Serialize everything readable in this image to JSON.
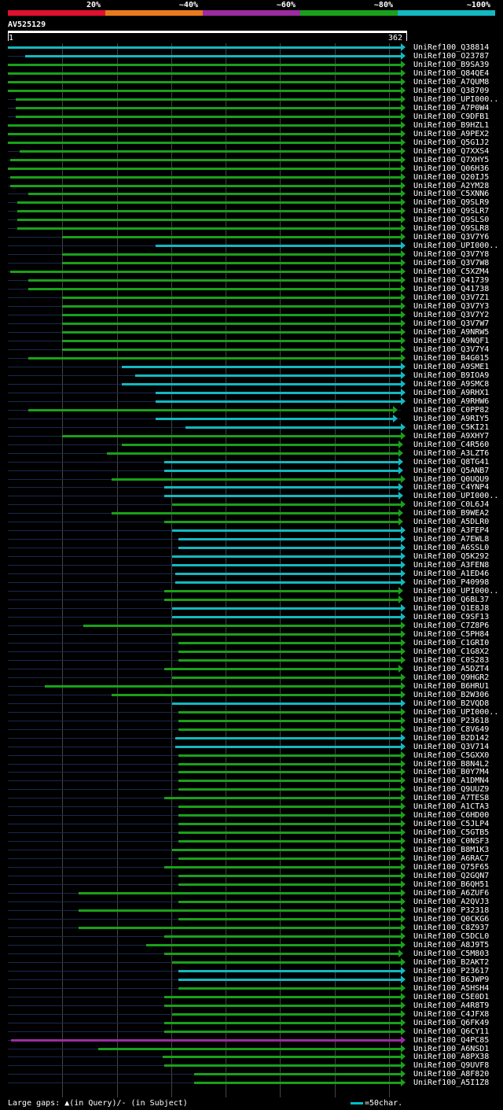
{
  "legend": {
    "colors": [
      "#e0102f",
      "#e87a1e",
      "#9a2ca0",
      "#1aa01a",
      "#14b8c0"
    ],
    "labels": [
      "20%",
      "~40%",
      "~60%",
      "~80%",
      "~100%"
    ]
  },
  "query": {
    "id": "AV525129",
    "start": "1",
    "end": "362"
  },
  "footer": {
    "gaps_text": "Large gaps: ▲(in Query)/- (in Subject)",
    "scale_text": "=50char."
  },
  "hits": [
    {
      "label": "UniRef100_Q38814",
      "from": 1,
      "to": 362,
      "color": "#14b8c0"
    },
    {
      "label": "UniRef100_O23787",
      "from": 17,
      "to": 362,
      "color": "#14b8c0"
    },
    {
      "label": "UniRef100_B9SA39",
      "from": 1,
      "to": 362,
      "color": "#1aa01a"
    },
    {
      "label": "UniRef100_Q84QE4",
      "from": 1,
      "to": 362,
      "color": "#1aa01a"
    },
    {
      "label": "UniRef100_A7QUM8",
      "from": 1,
      "to": 362,
      "color": "#1aa01a"
    },
    {
      "label": "UniRef100_Q38709",
      "from": 1,
      "to": 362,
      "color": "#1aa01a"
    },
    {
      "label": "UniRef100_UPI000..",
      "from": 8,
      "to": 362,
      "color": "#1aa01a"
    },
    {
      "label": "UniRef100_A7P0W4",
      "from": 8,
      "to": 362,
      "color": "#1aa01a"
    },
    {
      "label": "UniRef100_C9DFB1",
      "from": 8,
      "to": 362,
      "color": "#1aa01a"
    },
    {
      "label": "UniRef100_B9HZL1",
      "from": 1,
      "to": 362,
      "color": "#1aa01a"
    },
    {
      "label": "UniRef100_A9PEX2",
      "from": 1,
      "to": 362,
      "color": "#1aa01a"
    },
    {
      "label": "UniRef100_Q5G1J2",
      "from": 1,
      "to": 362,
      "color": "#1aa01a"
    },
    {
      "label": "UniRef100_Q7XXS4",
      "from": 12,
      "to": 362,
      "color": "#1aa01a"
    },
    {
      "label": "UniRef100_Q7XHY5",
      "from": 3,
      "to": 362,
      "color": "#1aa01a"
    },
    {
      "label": "UniRef100_Q06H36",
      "from": 1,
      "to": 362,
      "color": "#1aa01a"
    },
    {
      "label": "UniRef100_Q20IJ5",
      "from": 3,
      "to": 362,
      "color": "#1aa01a"
    },
    {
      "label": "UniRef100_A2YM28",
      "from": 3,
      "to": 362,
      "color": "#1aa01a"
    },
    {
      "label": "UniRef100_C5XNN6",
      "from": 20,
      "to": 362,
      "color": "#1aa01a"
    },
    {
      "label": "UniRef100_Q9SLR9",
      "from": 10,
      "to": 362,
      "color": "#1aa01a"
    },
    {
      "label": "UniRef100_Q9SLR7",
      "from": 10,
      "to": 362,
      "color": "#1aa01a"
    },
    {
      "label": "UniRef100_Q9SLS0",
      "from": 10,
      "to": 362,
      "color": "#1aa01a"
    },
    {
      "label": "UniRef100_Q9SLR8",
      "from": 10,
      "to": 362,
      "color": "#1aa01a"
    },
    {
      "label": "UniRef100_Q3V7Y6",
      "from": 51,
      "to": 362,
      "color": "#1aa01a"
    },
    {
      "label": "UniRef100_UPI000..",
      "from": 137,
      "to": 362,
      "color": "#14b8c0"
    },
    {
      "label": "UniRef100_Q3V7Y8",
      "from": 51,
      "to": 362,
      "color": "#1aa01a"
    },
    {
      "label": "UniRef100_Q3V7W8",
      "from": 51,
      "to": 362,
      "color": "#1aa01a"
    },
    {
      "label": "UniRef100_C5XZM4",
      "from": 3,
      "to": 362,
      "color": "#1aa01a"
    },
    {
      "label": "UniRef100_Q41739",
      "from": 20,
      "to": 362,
      "color": "#1aa01a"
    },
    {
      "label": "UniRef100_Q41738",
      "from": 20,
      "to": 362,
      "color": "#1aa01a"
    },
    {
      "label": "UniRef100_Q3V7Z1",
      "from": 51,
      "to": 362,
      "color": "#1aa01a"
    },
    {
      "label": "UniRef100_Q3V7Y3",
      "from": 51,
      "to": 362,
      "color": "#1aa01a"
    },
    {
      "label": "UniRef100_Q3V7Y2",
      "from": 51,
      "to": 362,
      "color": "#1aa01a"
    },
    {
      "label": "UniRef100_Q3V7W7",
      "from": 51,
      "to": 362,
      "color": "#1aa01a"
    },
    {
      "label": "UniRef100_A9NRW5",
      "from": 51,
      "to": 362,
      "color": "#1aa01a"
    },
    {
      "label": "UniRef100_A9NQF1",
      "from": 51,
      "to": 362,
      "color": "#1aa01a"
    },
    {
      "label": "UniRef100_Q3V7Y4",
      "from": 51,
      "to": 362,
      "color": "#1aa01a"
    },
    {
      "label": "UniRef100_B4G015",
      "from": 20,
      "to": 362,
      "color": "#1aa01a"
    },
    {
      "label": "UniRef100_A9SME1",
      "from": 106,
      "to": 362,
      "color": "#14b8c0"
    },
    {
      "label": "UniRef100_B9IOA9",
      "from": 118,
      "to": 362,
      "color": "#14b8c0"
    },
    {
      "label": "UniRef100_A9SMC8",
      "from": 106,
      "to": 362,
      "color": "#14b8c0"
    },
    {
      "label": "UniRef100_A9RHX1",
      "from": 137,
      "to": 362,
      "color": "#14b8c0"
    },
    {
      "label": "UniRef100_A9RHW6",
      "from": 137,
      "to": 362,
      "color": "#14b8c0"
    },
    {
      "label": "UniRef100_C0PP82",
      "from": 20,
      "to": 355,
      "color": "#1aa01a"
    },
    {
      "label": "UniRef100_A9RIY5",
      "from": 137,
      "to": 355,
      "color": "#14b8c0"
    },
    {
      "label": "UniRef100_C5KI21",
      "from": 164,
      "to": 362,
      "color": "#14b8c0"
    },
    {
      "label": "UniRef100_A9XHY7",
      "from": 51,
      "to": 362,
      "color": "#1aa01a"
    },
    {
      "label": "UniRef100_C4R560",
      "from": 106,
      "to": 360,
      "color": "#1aa01a"
    },
    {
      "label": "UniRef100_A3LZT6",
      "from": 92,
      "to": 360,
      "color": "#1aa01a"
    },
    {
      "label": "UniRef100_Q8TG41",
      "from": 145,
      "to": 360,
      "color": "#14b8c0"
    },
    {
      "label": "UniRef100_Q5ANB7",
      "from": 145,
      "to": 360,
      "color": "#14b8c0"
    },
    {
      "label": "UniRef100_Q0UQU9",
      "from": 96,
      "to": 362,
      "color": "#1aa01a"
    },
    {
      "label": "UniRef100_C4YNP4",
      "from": 145,
      "to": 360,
      "color": "#14b8c0"
    },
    {
      "label": "UniRef100_UPI000..",
      "from": 145,
      "to": 360,
      "color": "#14b8c0"
    },
    {
      "label": "UniRef100_C0L6J4",
      "from": 152,
      "to": 362,
      "color": "#1aa01a"
    },
    {
      "label": "UniRef100_B9WEA2",
      "from": 96,
      "to": 360,
      "color": "#1aa01a"
    },
    {
      "label": "UniRef100_A5DLR0",
      "from": 145,
      "to": 360,
      "color": "#1aa01a"
    },
    {
      "label": "UniRef100_A3FEP4",
      "from": 152,
      "to": 362,
      "color": "#14b8c0"
    },
    {
      "label": "UniRef100_A7EWL8",
      "from": 158,
      "to": 362,
      "color": "#14b8c0"
    },
    {
      "label": "UniRef100_A6SSL0",
      "from": 158,
      "to": 362,
      "color": "#14b8c0"
    },
    {
      "label": "UniRef100_Q5K292",
      "from": 152,
      "to": 362,
      "color": "#14b8c0"
    },
    {
      "label": "UniRef100_A3FEN8",
      "from": 152,
      "to": 362,
      "color": "#14b8c0"
    },
    {
      "label": "UniRef100_A1ED46",
      "from": 155,
      "to": 362,
      "color": "#14b8c0"
    },
    {
      "label": "UniRef100_P40998",
      "from": 155,
      "to": 362,
      "color": "#14b8c0"
    },
    {
      "label": "UniRef100_UPI000..",
      "from": 145,
      "to": 360,
      "color": "#1aa01a"
    },
    {
      "label": "UniRef100_Q6BL37",
      "from": 145,
      "to": 360,
      "color": "#1aa01a"
    },
    {
      "label": "UniRef100_Q1E8J8",
      "from": 152,
      "to": 362,
      "color": "#14b8c0"
    },
    {
      "label": "UniRef100_C9SF13",
      "from": 152,
      "to": 362,
      "color": "#14b8c0"
    },
    {
      "label": "UniRef100_C7Z8P6",
      "from": 70,
      "to": 362,
      "color": "#1aa01a"
    },
    {
      "label": "UniRef100_C5PH84",
      "from": 152,
      "to": 362,
      "color": "#1aa01a"
    },
    {
      "label": "UniRef100_C1GRI0",
      "from": 158,
      "to": 362,
      "color": "#1aa01a"
    },
    {
      "label": "UniRef100_C1G8X2",
      "from": 158,
      "to": 362,
      "color": "#1aa01a"
    },
    {
      "label": "UniRef100_C0S283",
      "from": 158,
      "to": 362,
      "color": "#1aa01a"
    },
    {
      "label": "UniRef100_A5DZT4",
      "from": 145,
      "to": 360,
      "color": "#1aa01a"
    },
    {
      "label": "UniRef100_Q9HGR2",
      "from": 152,
      "to": 362,
      "color": "#1aa01a"
    },
    {
      "label": "UniRef100_B6HRU1",
      "from": 35,
      "to": 362,
      "color": "#1aa01a"
    },
    {
      "label": "UniRef100_B2W306",
      "from": 96,
      "to": 362,
      "color": "#1aa01a"
    },
    {
      "label": "UniRef100_B2VQD8",
      "from": 152,
      "to": 362,
      "color": "#14b8c0"
    },
    {
      "label": "UniRef100_UPI000..",
      "from": 158,
      "to": 362,
      "color": "#1aa01a"
    },
    {
      "label": "UniRef100_P23618",
      "from": 158,
      "to": 362,
      "color": "#1aa01a"
    },
    {
      "label": "UniRef100_C8V649",
      "from": 158,
      "to": 362,
      "color": "#1aa01a"
    },
    {
      "label": "UniRef100_B2D142",
      "from": 155,
      "to": 362,
      "color": "#14b8c0"
    },
    {
      "label": "UniRef100_Q3V714",
      "from": 155,
      "to": 362,
      "color": "#14b8c0"
    },
    {
      "label": "UniRef100_C5GXX0",
      "from": 158,
      "to": 362,
      "color": "#1aa01a"
    },
    {
      "label": "UniRef100_B8N4L2",
      "from": 158,
      "to": 362,
      "color": "#1aa01a"
    },
    {
      "label": "UniRef100_B0Y7M4",
      "from": 158,
      "to": 362,
      "color": "#1aa01a"
    },
    {
      "label": "UniRef100_A1DMN4",
      "from": 158,
      "to": 362,
      "color": "#1aa01a"
    },
    {
      "label": "UniRef100_Q9UUZ9",
      "from": 158,
      "to": 362,
      "color": "#1aa01a"
    },
    {
      "label": "UniRef100_A7TES8",
      "from": 145,
      "to": 362,
      "color": "#1aa01a"
    },
    {
      "label": "UniRef100_A1CTA3",
      "from": 158,
      "to": 362,
      "color": "#1aa01a"
    },
    {
      "label": "UniRef100_C6HD00",
      "from": 158,
      "to": 362,
      "color": "#1aa01a"
    },
    {
      "label": "UniRef100_C5JLP4",
      "from": 158,
      "to": 362,
      "color": "#1aa01a"
    },
    {
      "label": "UniRef100_C5GTB5",
      "from": 158,
      "to": 362,
      "color": "#1aa01a"
    },
    {
      "label": "UniRef100_C0NSF3",
      "from": 158,
      "to": 362,
      "color": "#1aa01a"
    },
    {
      "label": "UniRef100_B8M1K3",
      "from": 152,
      "to": 362,
      "color": "#1aa01a"
    },
    {
      "label": "UniRef100_A6RAC7",
      "from": 158,
      "to": 362,
      "color": "#1aa01a"
    },
    {
      "label": "UniRef100_Q75F65",
      "from": 145,
      "to": 362,
      "color": "#1aa01a"
    },
    {
      "label": "UniRef100_Q2GQN7",
      "from": 158,
      "to": 362,
      "color": "#1aa01a"
    },
    {
      "label": "UniRef100_B6QH51",
      "from": 158,
      "to": 362,
      "color": "#1aa01a"
    },
    {
      "label": "UniRef100_A6ZUF6",
      "from": 66,
      "to": 362,
      "color": "#1aa01a"
    },
    {
      "label": "UniRef100_A2QVJ3",
      "from": 158,
      "to": 362,
      "color": "#1aa01a"
    },
    {
      "label": "UniRef100_P32318",
      "from": 66,
      "to": 362,
      "color": "#1aa01a"
    },
    {
      "label": "UniRef100_Q0CKG6",
      "from": 158,
      "to": 362,
      "color": "#1aa01a"
    },
    {
      "label": "UniRef100_C8Z937",
      "from": 66,
      "to": 362,
      "color": "#1aa01a"
    },
    {
      "label": "UniRef100_C5DCL0",
      "from": 145,
      "to": 362,
      "color": "#1aa01a"
    },
    {
      "label": "UniRef100_A8J9T5",
      "from": 128,
      "to": 362,
      "color": "#1aa01a"
    },
    {
      "label": "UniRef100_C5M803",
      "from": 145,
      "to": 360,
      "color": "#1aa01a"
    },
    {
      "label": "UniRef100_B2AKT2",
      "from": 152,
      "to": 362,
      "color": "#1aa01a"
    },
    {
      "label": "UniRef100_P23617",
      "from": 158,
      "to": 362,
      "color": "#14b8c0"
    },
    {
      "label": "UniRef100_B6JWP9",
      "from": 158,
      "to": 362,
      "color": "#14b8c0"
    },
    {
      "label": "UniRef100_A5HSH4",
      "from": 158,
      "to": 362,
      "color": "#1aa01a"
    },
    {
      "label": "UniRef100_C5E0D1",
      "from": 145,
      "to": 362,
      "color": "#1aa01a"
    },
    {
      "label": "UniRef100_A4R8T9",
      "from": 145,
      "to": 362,
      "color": "#1aa01a"
    },
    {
      "label": "UniRef100_C4JFX8",
      "from": 152,
      "to": 362,
      "color": "#1aa01a"
    },
    {
      "label": "UniRef100_Q6FK49",
      "from": 145,
      "to": 362,
      "color": "#1aa01a"
    },
    {
      "label": "UniRef100_Q6CY11",
      "from": 145,
      "to": 362,
      "color": "#1aa01a"
    },
    {
      "label": "UniRef100_Q4PC85",
      "from": 4,
      "to": 362,
      "color": "#9a2ca0"
    },
    {
      "label": "UniRef100_A6NSD1",
      "from": 84,
      "to": 362,
      "color": "#1aa01a"
    },
    {
      "label": "UniRef100_A8PX38",
      "from": 143,
      "to": 362,
      "color": "#1aa01a"
    },
    {
      "label": "UniRef100_Q9UVF8",
      "from": 145,
      "to": 362,
      "color": "#1aa01a"
    },
    {
      "label": "UniRef100_A8F820",
      "from": 172,
      "to": 362,
      "color": "#1aa01a"
    },
    {
      "label": "UniRef100_A5I1Z8",
      "from": 172,
      "to": 362,
      "color": "#1aa01a"
    }
  ]
}
